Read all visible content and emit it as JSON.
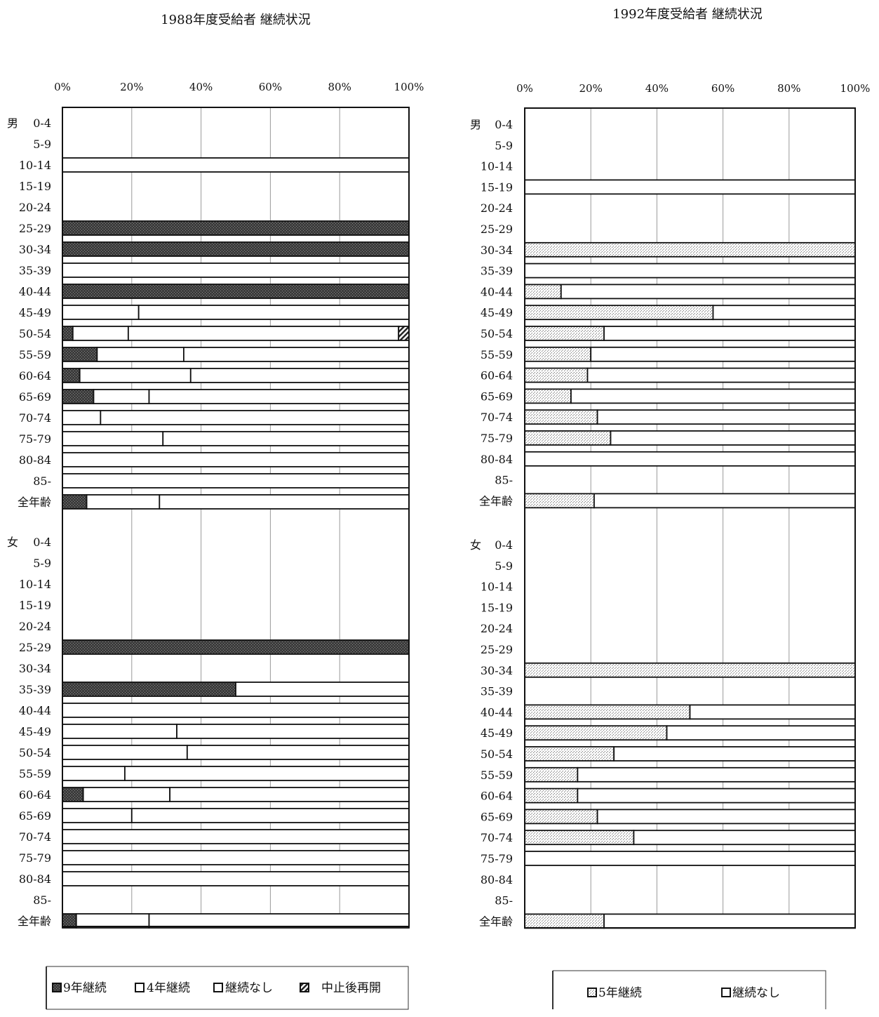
{
  "chart_data": [
    {
      "type": "bar",
      "stacked": "percent",
      "orientation": "horizontal",
      "title": "1988年度受給者 継続状況",
      "x_ticks": [
        "0%",
        "20%",
        "40%",
        "60%",
        "80%",
        "100%"
      ],
      "xlim": [
        0,
        100
      ],
      "groups": [
        {
          "label": "男",
          "categories": [
            "0-4",
            "5-9",
            "10-14",
            "15-19",
            "20-24",
            "25-29",
            "30-34",
            "35-39",
            "40-44",
            "45-49",
            "50-54",
            "55-59",
            "60-64",
            "65-69",
            "70-74",
            "75-79",
            "80-84",
            "85-",
            "全年齢"
          ],
          "series": [
            {
              "name": "9年継続",
              "values": [
                0,
                0,
                0,
                0,
                0,
                100,
                100,
                0,
                100,
                0,
                3,
                10,
                5,
                9,
                0,
                0,
                0,
                0,
                7
              ]
            },
            {
              "name": "4年継続",
              "values": [
                0,
                0,
                0,
                0,
                0,
                0,
                0,
                0,
                0,
                22,
                16,
                25,
                32,
                16,
                11,
                29,
                0,
                0,
                21
              ]
            },
            {
              "name": "継続なし",
              "values": [
                0,
                0,
                100,
                0,
                0,
                0,
                0,
                100,
                0,
                78,
                78,
                65,
                63,
                75,
                89,
                71,
                100,
                100,
                72
              ]
            },
            {
              "name": "中止後再開",
              "values": [
                0,
                0,
                0,
                0,
                0,
                0,
                0,
                0,
                0,
                0,
                3,
                0,
                0,
                0,
                0,
                0,
                0,
                0,
                0
              ]
            }
          ]
        },
        {
          "label": "女",
          "categories": [
            "0-4",
            "5-9",
            "10-14",
            "15-19",
            "20-24",
            "25-29",
            "30-34",
            "35-39",
            "40-44",
            "45-49",
            "50-54",
            "55-59",
            "60-64",
            "65-69",
            "70-74",
            "75-79",
            "80-84",
            "85-",
            "全年齢"
          ],
          "series": [
            {
              "name": "9年継続",
              "values": [
                0,
                0,
                0,
                0,
                0,
                100,
                0,
                50,
                0,
                0,
                0,
                0,
                6,
                0,
                0,
                0,
                0,
                0,
                4
              ]
            },
            {
              "name": "4年継続",
              "values": [
                0,
                0,
                0,
                0,
                0,
                0,
                0,
                0,
                0,
                33,
                36,
                18,
                25,
                20,
                0,
                0,
                0,
                0,
                21
              ]
            },
            {
              "name": "継続なし",
              "values": [
                0,
                0,
                0,
                0,
                0,
                0,
                0,
                50,
                100,
                67,
                64,
                82,
                69,
                80,
                100,
                100,
                100,
                0,
                75
              ]
            },
            {
              "name": "中止後再開",
              "values": [
                0,
                0,
                0,
                0,
                0,
                0,
                0,
                0,
                0,
                0,
                0,
                0,
                0,
                0,
                0,
                0,
                0,
                0,
                0
              ]
            }
          ]
        }
      ],
      "legend_position": "bottom",
      "grid": true
    },
    {
      "type": "bar",
      "stacked": "percent",
      "orientation": "horizontal",
      "title": "1992年度受給者 継続状況",
      "x_ticks": [
        "0%",
        "20%",
        "40%",
        "60%",
        "80%",
        "100%"
      ],
      "xlim": [
        0,
        100
      ],
      "groups": [
        {
          "label": "男",
          "categories": [
            "0-4",
            "5-9",
            "10-14",
            "15-19",
            "20-24",
            "25-29",
            "30-34",
            "35-39",
            "40-44",
            "45-49",
            "50-54",
            "55-59",
            "60-64",
            "65-69",
            "70-74",
            "75-79",
            "80-84",
            "85-",
            "全年齢"
          ],
          "series": [
            {
              "name": "5年継続",
              "values": [
                0,
                0,
                0,
                0,
                0,
                0,
                100,
                0,
                11,
                57,
                24,
                20,
                19,
                14,
                22,
                26,
                0,
                0,
                21
              ]
            },
            {
              "name": "継続なし",
              "values": [
                0,
                0,
                0,
                100,
                0,
                0,
                0,
                100,
                89,
                43,
                76,
                80,
                81,
                86,
                78,
                74,
                100,
                0,
                79
              ]
            }
          ]
        },
        {
          "label": "女",
          "categories": [
            "0-4",
            "5-9",
            "10-14",
            "15-19",
            "20-24",
            "25-29",
            "30-34",
            "35-39",
            "40-44",
            "45-49",
            "50-54",
            "55-59",
            "60-64",
            "65-69",
            "70-74",
            "75-79",
            "80-84",
            "85-",
            "全年齢"
          ],
          "series": [
            {
              "name": "5年継続",
              "values": [
                0,
                0,
                0,
                0,
                0,
                0,
                100,
                0,
                50,
                43,
                27,
                16,
                16,
                22,
                33,
                0,
                0,
                0,
                24
              ]
            },
            {
              "name": "継続なし",
              "values": [
                0,
                0,
                0,
                0,
                0,
                0,
                0,
                0,
                50,
                57,
                73,
                84,
                84,
                78,
                67,
                100,
                0,
                0,
                76
              ]
            }
          ]
        }
      ],
      "legend_position": "bottom",
      "grid": true
    }
  ],
  "colors": {
    "dark_fill": "#4a4a4a",
    "light_fill": "#dcdcdc",
    "white_fill": "#ffffff",
    "hatch_fill": "#222222",
    "stroke": "#111111",
    "grid": "#999999"
  }
}
